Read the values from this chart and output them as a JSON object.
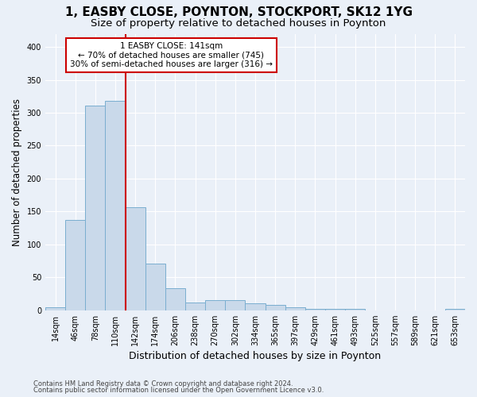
{
  "title": "1, EASBY CLOSE, POYNTON, STOCKPORT, SK12 1YG",
  "subtitle": "Size of property relative to detached houses in Poynton",
  "xlabel": "Distribution of detached houses by size in Poynton",
  "ylabel": "Number of detached properties",
  "footnote1": "Contains HM Land Registry data © Crown copyright and database right 2024.",
  "footnote2": "Contains public sector information licensed under the Open Government Licence v3.0.",
  "bin_labels": [
    "14sqm",
    "46sqm",
    "78sqm",
    "110sqm",
    "142sqm",
    "174sqm",
    "206sqm",
    "238sqm",
    "270sqm",
    "302sqm",
    "334sqm",
    "365sqm",
    "397sqm",
    "429sqm",
    "461sqm",
    "493sqm",
    "525sqm",
    "557sqm",
    "589sqm",
    "621sqm",
    "653sqm"
  ],
  "bar_heights": [
    4,
    137,
    311,
    318,
    157,
    71,
    33,
    12,
    15,
    15,
    10,
    8,
    4,
    2,
    2,
    2,
    0,
    0,
    0,
    0,
    2
  ],
  "bar_color": "#c9d9ea",
  "bar_edge_color": "#7aaed0",
  "property_line_label": "1 EASBY CLOSE: 141sqm",
  "annotation_line1": "← 70% of detached houses are smaller (745)",
  "annotation_line2": "30% of semi-detached houses are larger (316) →",
  "annotation_box_color": "#ffffff",
  "annotation_box_edge_color": "#cc0000",
  "property_line_color": "#cc0000",
  "property_line_x": 3.5,
  "ylim": [
    0,
    420
  ],
  "yticks": [
    0,
    50,
    100,
    150,
    200,
    250,
    300,
    350,
    400
  ],
  "background_color": "#eaf0f8",
  "axes_background": "#eaf0f8",
  "grid_color": "#ffffff",
  "title_fontsize": 11,
  "subtitle_fontsize": 9.5,
  "ylabel_fontsize": 8.5,
  "xlabel_fontsize": 9,
  "tick_fontsize": 7,
  "footnote_fontsize": 6
}
